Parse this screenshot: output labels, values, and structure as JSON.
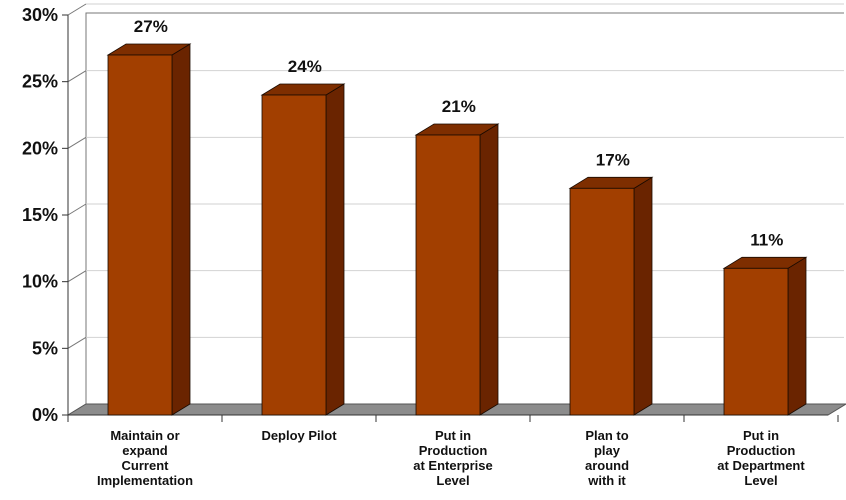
{
  "chart_data": {
    "type": "bar",
    "categories": [
      [
        "Maintain or",
        "expand",
        "Current",
        "Implementation"
      ],
      [
        "Deploy Pilot"
      ],
      [
        "Put in",
        "Production",
        "at Enterprise",
        "Level"
      ],
      [
        "Plan to",
        "play",
        "around",
        "with it"
      ],
      [
        "Put in",
        "Production",
        "at Department",
        "Level"
      ]
    ],
    "values": [
      27,
      24,
      21,
      17,
      11
    ],
    "data_labels": [
      "27%",
      "24%",
      "21%",
      "17%",
      "11%"
    ],
    "y_ticks": [
      "0%",
      "5%",
      "10%",
      "15%",
      "20%",
      "25%",
      "30%"
    ],
    "ylim": [
      0,
      30
    ],
    "grid": true,
    "legend": "none",
    "colors": {
      "bar_front": "#A23F00",
      "bar_side": "#6A2400",
      "bar_top": "#7E2E00",
      "floor": "#8C8C8C",
      "wall_line": "#777777",
      "grid": "#d2d2d2",
      "outline": "#1a0a00"
    }
  }
}
